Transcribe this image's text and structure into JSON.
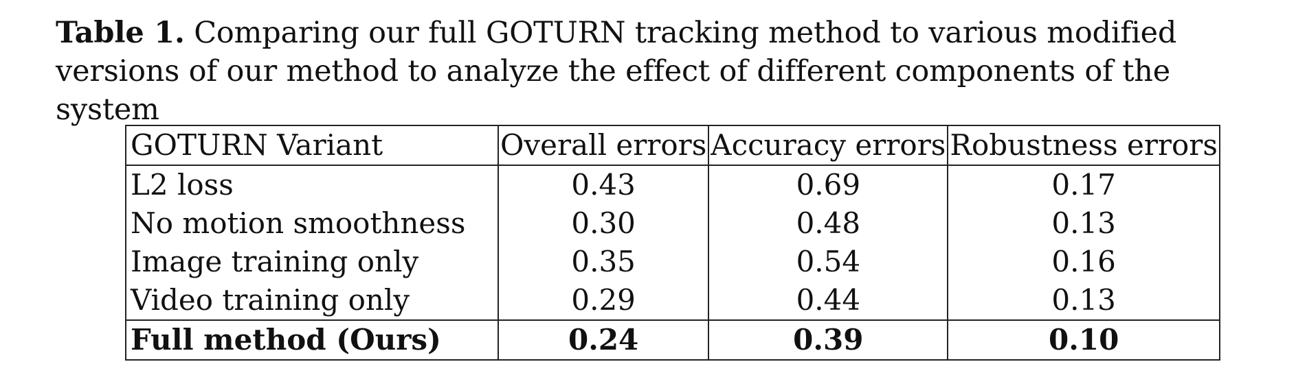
{
  "caption": {
    "label": "Table 1.",
    "text": "Comparing our full GOTURN tracking method to various modified versions of our method to analyze the effect of different components of the system"
  },
  "table": {
    "headers": [
      "GOTURN Variant",
      "Overall errors",
      "Accuracy errors",
      "Robustness errors"
    ],
    "rows": [
      [
        "L2 loss",
        "0.43",
        "0.69",
        "0.17"
      ],
      [
        "No motion smoothness",
        "0.30",
        "0.48",
        "0.13"
      ],
      [
        "Image training only",
        "0.35",
        "0.54",
        "0.16"
      ],
      [
        "Video training only",
        "0.29",
        "0.44",
        "0.13"
      ],
      [
        "Full method (Ours)",
        "0.24",
        "0.39",
        "0.10"
      ]
    ]
  }
}
